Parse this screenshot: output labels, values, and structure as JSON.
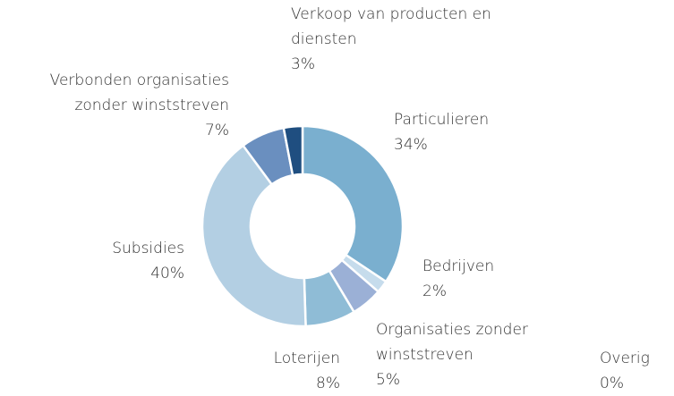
{
  "chart_data": {
    "type": "donut",
    "categories": [
      "Particulieren",
      "Bedrijven",
      "Organisaties zonder winststreven",
      "Loterijen",
      "Subsidies",
      "Verbonden organisaties zonder winststreven",
      "Verkoop van producten en diensten",
      "Overig"
    ],
    "values": [
      34,
      2,
      5,
      8,
      40,
      7,
      3,
      0
    ],
    "value_labels": [
      "34%",
      "2%",
      "5%",
      "8%",
      "40%",
      "7%",
      "3%",
      "0%"
    ],
    "colors": [
      "#7aafcf",
      "#c6dcec",
      "#9bb0d6",
      "#8fbcd6",
      "#b3cfe3",
      "#6a8fbf",
      "#1f4e80",
      "#dfe9f2"
    ]
  }
}
